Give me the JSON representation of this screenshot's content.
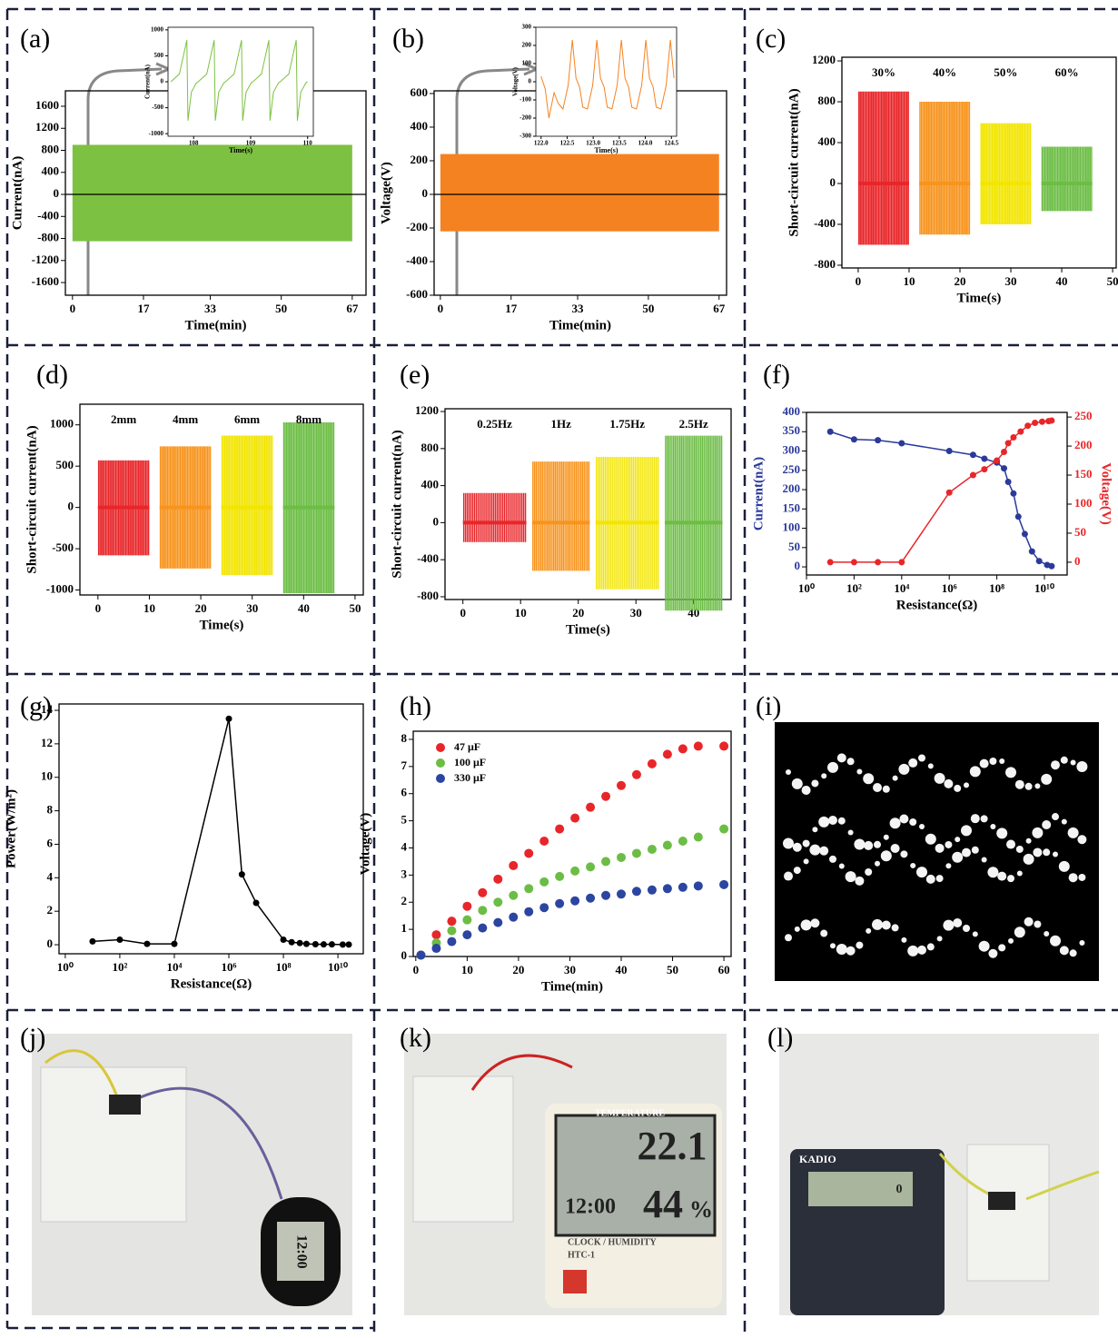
{
  "chart_data": [
    {
      "type": "band",
      "panel": "(a)",
      "xlabel": "Time(min)",
      "ylabel": "Current(nA)",
      "xlim": [
        -1.7,
        70.3
      ],
      "xticks": [
        0,
        17,
        33,
        50,
        67
      ],
      "ylim": [
        -1830,
        1880
      ],
      "yticks": [
        -1600,
        -1200,
        -800,
        -400,
        0,
        400,
        800,
        1200,
        1600
      ],
      "zero_line": true,
      "series": [
        {
          "color": "#7dc142",
          "x": [
            0,
            67
          ],
          "upper": [
            900,
            900
          ],
          "lower": [
            -850,
            -850
          ]
        }
      ],
      "inset": {
        "type": "line",
        "xlabel": "Time(s)",
        "ylabel": "Current(nA)",
        "xlim": [
          107.55,
          110.1
        ],
        "xticks": [
          108,
          109,
          110
        ],
        "ylim": [
          -1050,
          1050
        ],
        "yticks": [
          -1000,
          -500,
          0,
          500,
          1000
        ],
        "series": [
          {
            "color": "#7dc142",
            "x": [
              107.6,
              107.75,
              107.88,
              107.9,
              107.96,
              108.05,
              108.08,
              108.23,
              108.36,
              108.38,
              108.44,
              108.53,
              108.56,
              108.71,
              108.84,
              108.86,
              108.92,
              109.01,
              109.04,
              109.19,
              109.32,
              109.34,
              109.4,
              109.49,
              109.52,
              109.67,
              109.8,
              109.82,
              109.88,
              109.97,
              110.0
            ],
            "values": [
              0,
              150,
              800,
              -750,
              -200,
              -20,
              0,
              150,
              800,
              -750,
              -200,
              -20,
              0,
              150,
              800,
              -750,
              -200,
              -20,
              0,
              150,
              800,
              -750,
              -200,
              -20,
              0,
              150,
              800,
              -750,
              -200,
              -20,
              0
            ]
          }
        ]
      }
    },
    {
      "type": "band",
      "panel": "(b)",
      "xlabel": "Time(min)",
      "ylabel": "Voltage(V)",
      "xlim": [
        -1.5,
        68.8
      ],
      "xticks": [
        0,
        17,
        33,
        50,
        67
      ],
      "ylim": [
        -600,
        616
      ],
      "yticks": [
        -600,
        -400,
        -200,
        0,
        200,
        400,
        600
      ],
      "zero_line": true,
      "series": [
        {
          "color": "#f58220",
          "x": [
            0,
            67
          ],
          "upper": [
            240,
            240
          ],
          "lower": [
            -220,
            -220
          ]
        }
      ],
      "inset": {
        "type": "line",
        "xlabel": "Time(s)",
        "ylabel": "Voltage(V)",
        "xlim": [
          121.9,
          124.6
        ],
        "xticks": [
          {
            "value": 122,
            "label": "122.0"
          },
          122.5,
          {
            "value": 123,
            "label": "123.0"
          },
          123.5,
          {
            "value": 124,
            "label": "124.0"
          },
          124.5
        ],
        "ylim": [
          -300,
          300
        ],
        "yticks": [
          -300,
          -200,
          -100,
          0,
          100,
          200,
          300
        ],
        "series": [
          {
            "color": "#f58220",
            "x": [
              122.0,
              122.08,
              122.15,
              122.25,
              122.33,
              122.42,
              122.52,
              122.6,
              122.67,
              122.74,
              122.8,
              122.89,
              122.99,
              123.07,
              123.14,
              123.21,
              123.27,
              123.36,
              123.46,
              123.54,
              123.61,
              123.68,
              123.74,
              123.83,
              123.93,
              124.01,
              124.08,
              124.15,
              124.21,
              124.3,
              124.4,
              124.48,
              124.55
            ],
            "values": [
              30,
              -40,
              -200,
              -60,
              -120,
              -150,
              -20,
              230,
              20,
              -30,
              -140,
              -150,
              -20,
              230,
              20,
              -30,
              -140,
              -150,
              -20,
              230,
              20,
              -30,
              -140,
              -150,
              -20,
              230,
              20,
              -30,
              -140,
              -150,
              -20,
              230,
              20
            ]
          }
        ]
      }
    },
    {
      "type": "bursts",
      "panel": "(c)",
      "xlabel": "Time(s)",
      "ylabel": "Short-circuit current(nA)",
      "xlim": [
        -3.2,
        50.7
      ],
      "xticks": [
        0,
        10,
        20,
        30,
        40,
        50
      ],
      "ylim": [
        -827,
        1236
      ],
      "yticks": [
        -800,
        -400,
        0,
        400,
        800,
        1200
      ],
      "series": [
        {
          "name": "30%",
          "color": "#e8262a",
          "x": [
            0,
            10
          ],
          "upper": 900,
          "lower": -600
        },
        {
          "name": "40%",
          "color": "#f7941d",
          "x": [
            12,
            22
          ],
          "upper": 800,
          "lower": -500
        },
        {
          "name": "50%",
          "color": "#f2e500",
          "x": [
            24,
            34
          ],
          "upper": 590,
          "lower": -400
        },
        {
          "name": "60%",
          "color": "#6cbd45",
          "x": [
            36,
            46
          ],
          "upper": 360,
          "lower": -270
        }
      ]
    },
    {
      "type": "bursts",
      "panel": "(d)",
      "xlabel": "Time(s)",
      "ylabel": "Short-circuit current(nA)",
      "xlim": [
        -3.5,
        51.6
      ],
      "xticks": [
        0,
        10,
        20,
        30,
        40,
        50
      ],
      "ylim": [
        -1060,
        1250
      ],
      "yticks": [
        -1000,
        -500,
        0,
        500,
        1000
      ],
      "series": [
        {
          "name": "2mm",
          "color": "#e8262a",
          "x": [
            0,
            10
          ],
          "upper": 570,
          "lower": -580
        },
        {
          "name": "4mm",
          "color": "#f7941d",
          "x": [
            12,
            22
          ],
          "upper": 740,
          "lower": -740
        },
        {
          "name": "6mm",
          "color": "#f2e500",
          "x": [
            24,
            34
          ],
          "upper": 870,
          "lower": -820
        },
        {
          "name": "8mm",
          "color": "#6cbd45",
          "x": [
            36,
            46
          ],
          "upper": 1030,
          "lower": -1040
        }
      ]
    },
    {
      "type": "bursts",
      "panel": "(e)",
      "xlabel": "Time(s)",
      "ylabel": "Short-circuit current(nA)",
      "xlim": [
        -3.1,
        46.5
      ],
      "xticks": [
        0,
        10,
        20,
        30,
        40
      ],
      "ylim": [
        -830,
        1230
      ],
      "yticks": [
        -800,
        -400,
        0,
        400,
        800,
        1200
      ],
      "series": [
        {
          "name": "0.25Hz",
          "color": "#e8262a",
          "x": [
            0,
            11
          ],
          "upper": 320,
          "lower": -210
        },
        {
          "name": "1Hz",
          "color": "#f7941d",
          "x": [
            12,
            22
          ],
          "upper": 660,
          "lower": -520
        },
        {
          "name": "1.75Hz",
          "color": "#f2e500",
          "x": [
            23,
            34
          ],
          "upper": 710,
          "lower": -720
        },
        {
          "name": "2.5Hz",
          "color": "#6cbd45",
          "x": [
            35,
            45
          ],
          "upper": 940,
          "lower": -950
        }
      ]
    },
    {
      "type": "line",
      "panel": "(f)",
      "xlabel": "Resistance(Ω)",
      "ylabel": "Current(nA)",
      "y2label": "Voltage(V)",
      "ylabel_color": "#2b3a9a",
      "y2label_color": "#e8262a",
      "xlog": true,
      "xlim": [
        1,
        90000000000
      ],
      "xticks": [
        {
          "value": 1,
          "label": "10⁰"
        },
        {
          "value": 100,
          "label": "10²"
        },
        {
          "value": 10000,
          "label": "10⁴"
        },
        {
          "value": 1000000,
          "label": "10⁶"
        },
        {
          "value": 100000000,
          "label": "10⁸"
        },
        {
          "value": 10000000000,
          "label": "10¹⁰"
        }
      ],
      "ylim": [
        -21,
        400
      ],
      "yticks": [
        0,
        50,
        100,
        150,
        200,
        250,
        300,
        350,
        400
      ],
      "y2lim": [
        -22,
        258
      ],
      "y2ticks": [
        0,
        50,
        100,
        150,
        200,
        250
      ],
      "series": [
        {
          "color": "#2b3a9a",
          "marker": true,
          "x": [
            10,
            100,
            1000,
            10000,
            1000000,
            10000000,
            30000000,
            100000000,
            200000000,
            300000000,
            500000000,
            800000000,
            1500000000,
            3000000000,
            6000000000,
            13000000000,
            20000000000
          ],
          "values": [
            350,
            330,
            328,
            320,
            300,
            290,
            280,
            270,
            255,
            220,
            190,
            130,
            85,
            40,
            15,
            5,
            2
          ]
        },
        {
          "color": "#e8262a",
          "marker": true,
          "axis": "y2",
          "x": [
            10,
            100,
            1000,
            10000,
            1000000,
            10000000,
            30000000,
            100000000,
            200000000,
            300000000,
            500000000,
            1000000000,
            2000000000,
            4000000000,
            8000000000,
            15000000000,
            20000000000
          ],
          "values": [
            0,
            0,
            0,
            0,
            120,
            150,
            160,
            175,
            190,
            205,
            215,
            225,
            235,
            240,
            242,
            243,
            244
          ]
        }
      ]
    },
    {
      "type": "line",
      "panel": "(g)",
      "xlabel": "Resistance(Ω)",
      "ylabel": "Power(W/m²)",
      "xlog": true,
      "xlim": [
        0.59,
        85000000000
      ],
      "xticks": [
        {
          "value": 1,
          "label": "10⁰"
        },
        {
          "value": 100,
          "label": "10²"
        },
        {
          "value": 10000,
          "label": "10⁴"
        },
        {
          "value": 1000000,
          "label": "10⁶"
        },
        {
          "value": 100000000,
          "label": "10⁸"
        },
        {
          "value": 10000000000,
          "label": "10¹⁰"
        }
      ],
      "ylim": [
        -0.54,
        14.38
      ],
      "yticks": [
        0,
        2,
        4,
        6,
        8,
        10,
        12,
        14
      ],
      "series": [
        {
          "color": "#000000",
          "marker": true,
          "x": [
            10,
            100,
            1000,
            10000,
            1000000,
            3000000,
            10000000,
            100000000,
            200000000,
            400000000,
            700000000,
            1500000000,
            3000000000,
            6000000000,
            15000000000,
            25000000000
          ],
          "values": [
            0.2,
            0.3,
            0.05,
            0.05,
            13.5,
            4.2,
            2.5,
            0.3,
            0.15,
            0.1,
            0.05,
            0.03,
            0.02,
            0.02,
            0.01,
            0.01
          ]
        }
      ]
    },
    {
      "type": "scatter",
      "panel": "(h)",
      "xlabel": "Time(min)",
      "ylabel": "Voltage(V)",
      "legend": "upper left",
      "xlim": [
        -0.5,
        61.4
      ],
      "xticks": [
        0,
        10,
        20,
        30,
        40,
        50,
        60
      ],
      "ylim": [
        0,
        8.3
      ],
      "yticks": [
        0,
        1,
        2,
        3,
        4,
        5,
        6,
        7,
        8
      ],
      "x": [
        1,
        4,
        7,
        10,
        13,
        16,
        19,
        22,
        25,
        28,
        31,
        34,
        37,
        40,
        43,
        46,
        49,
        52,
        55,
        60
      ],
      "series": [
        {
          "name": "47 μF",
          "color": "#e8262a",
          "values": [
            0.05,
            0.8,
            1.3,
            1.85,
            2.35,
            2.85,
            3.35,
            3.8,
            4.25,
            4.7,
            5.1,
            5.5,
            5.9,
            6.3,
            6.7,
            7.1,
            7.45,
            7.65,
            7.75,
            7.75
          ]
        },
        {
          "name": "100 μF",
          "color": "#6cbd45",
          "values": [
            0.05,
            0.5,
            0.95,
            1.35,
            1.7,
            2.0,
            2.25,
            2.5,
            2.75,
            2.95,
            3.15,
            3.3,
            3.5,
            3.65,
            3.8,
            3.95,
            4.1,
            4.25,
            4.4,
            4.7
          ]
        },
        {
          "name": "330 μF",
          "color": "#2b45a0",
          "values": [
            0.05,
            0.3,
            0.55,
            0.8,
            1.05,
            1.25,
            1.45,
            1.65,
            1.8,
            1.95,
            2.05,
            2.15,
            2.25,
            2.3,
            2.4,
            2.45,
            2.5,
            2.55,
            2.6,
            2.65
          ]
        }
      ]
    }
  ],
  "photos": [
    {
      "panel": "(i)"
    },
    {
      "panel": "(j)",
      "texts": [
        "12:00"
      ]
    },
    {
      "panel": "(k)",
      "texts": [
        "TEMPERATURE",
        "22.1",
        "12:00",
        "44",
        "%",
        "CLOCK / HUMIDITY",
        "HTC-1"
      ]
    },
    {
      "panel": "(l)",
      "texts": [
        "KADIO",
        "0"
      ]
    }
  ]
}
